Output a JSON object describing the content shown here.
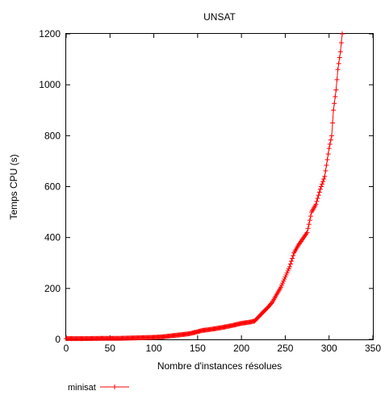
{
  "chart_data": {
    "type": "line",
    "title": "UNSAT",
    "xlabel": "Nombre d'instances résolues",
    "ylabel": "Temps CPU (s)",
    "xlim": [
      0,
      350
    ],
    "ylim": [
      0,
      1200
    ],
    "xticks": [
      "0",
      "50",
      "100",
      "150",
      "200",
      "250",
      "300",
      "350"
    ],
    "yticks": [
      "0",
      "200",
      "400",
      "600",
      "800",
      "1000",
      "1200"
    ],
    "grid": false,
    "legend_position": "bottom-left, below plot",
    "color": "#ff0000",
    "series": [
      {
        "name": "minisat",
        "marker": "+",
        "color": "#ff0000",
        "x": [
          0,
          20,
          40,
          60,
          80,
          100,
          110,
          120,
          130,
          140,
          150,
          155,
          160,
          170,
          180,
          190,
          200,
          210,
          215,
          220,
          225,
          230,
          235,
          240,
          245,
          250,
          255,
          260,
          265,
          270,
          275,
          280,
          285,
          290,
          295,
          300,
          303,
          305,
          308,
          310,
          313,
          315
        ],
        "y": [
          3,
          3,
          4,
          4,
          6,
          8,
          10,
          14,
          18,
          22,
          30,
          35,
          37,
          42,
          48,
          55,
          63,
          68,
          72,
          90,
          108,
          125,
          145,
          175,
          205,
          245,
          285,
          340,
          370,
          395,
          420,
          500,
          530,
          590,
          640,
          750,
          800,
          900,
          980,
          1060,
          1130,
          1200
        ]
      }
    ]
  }
}
